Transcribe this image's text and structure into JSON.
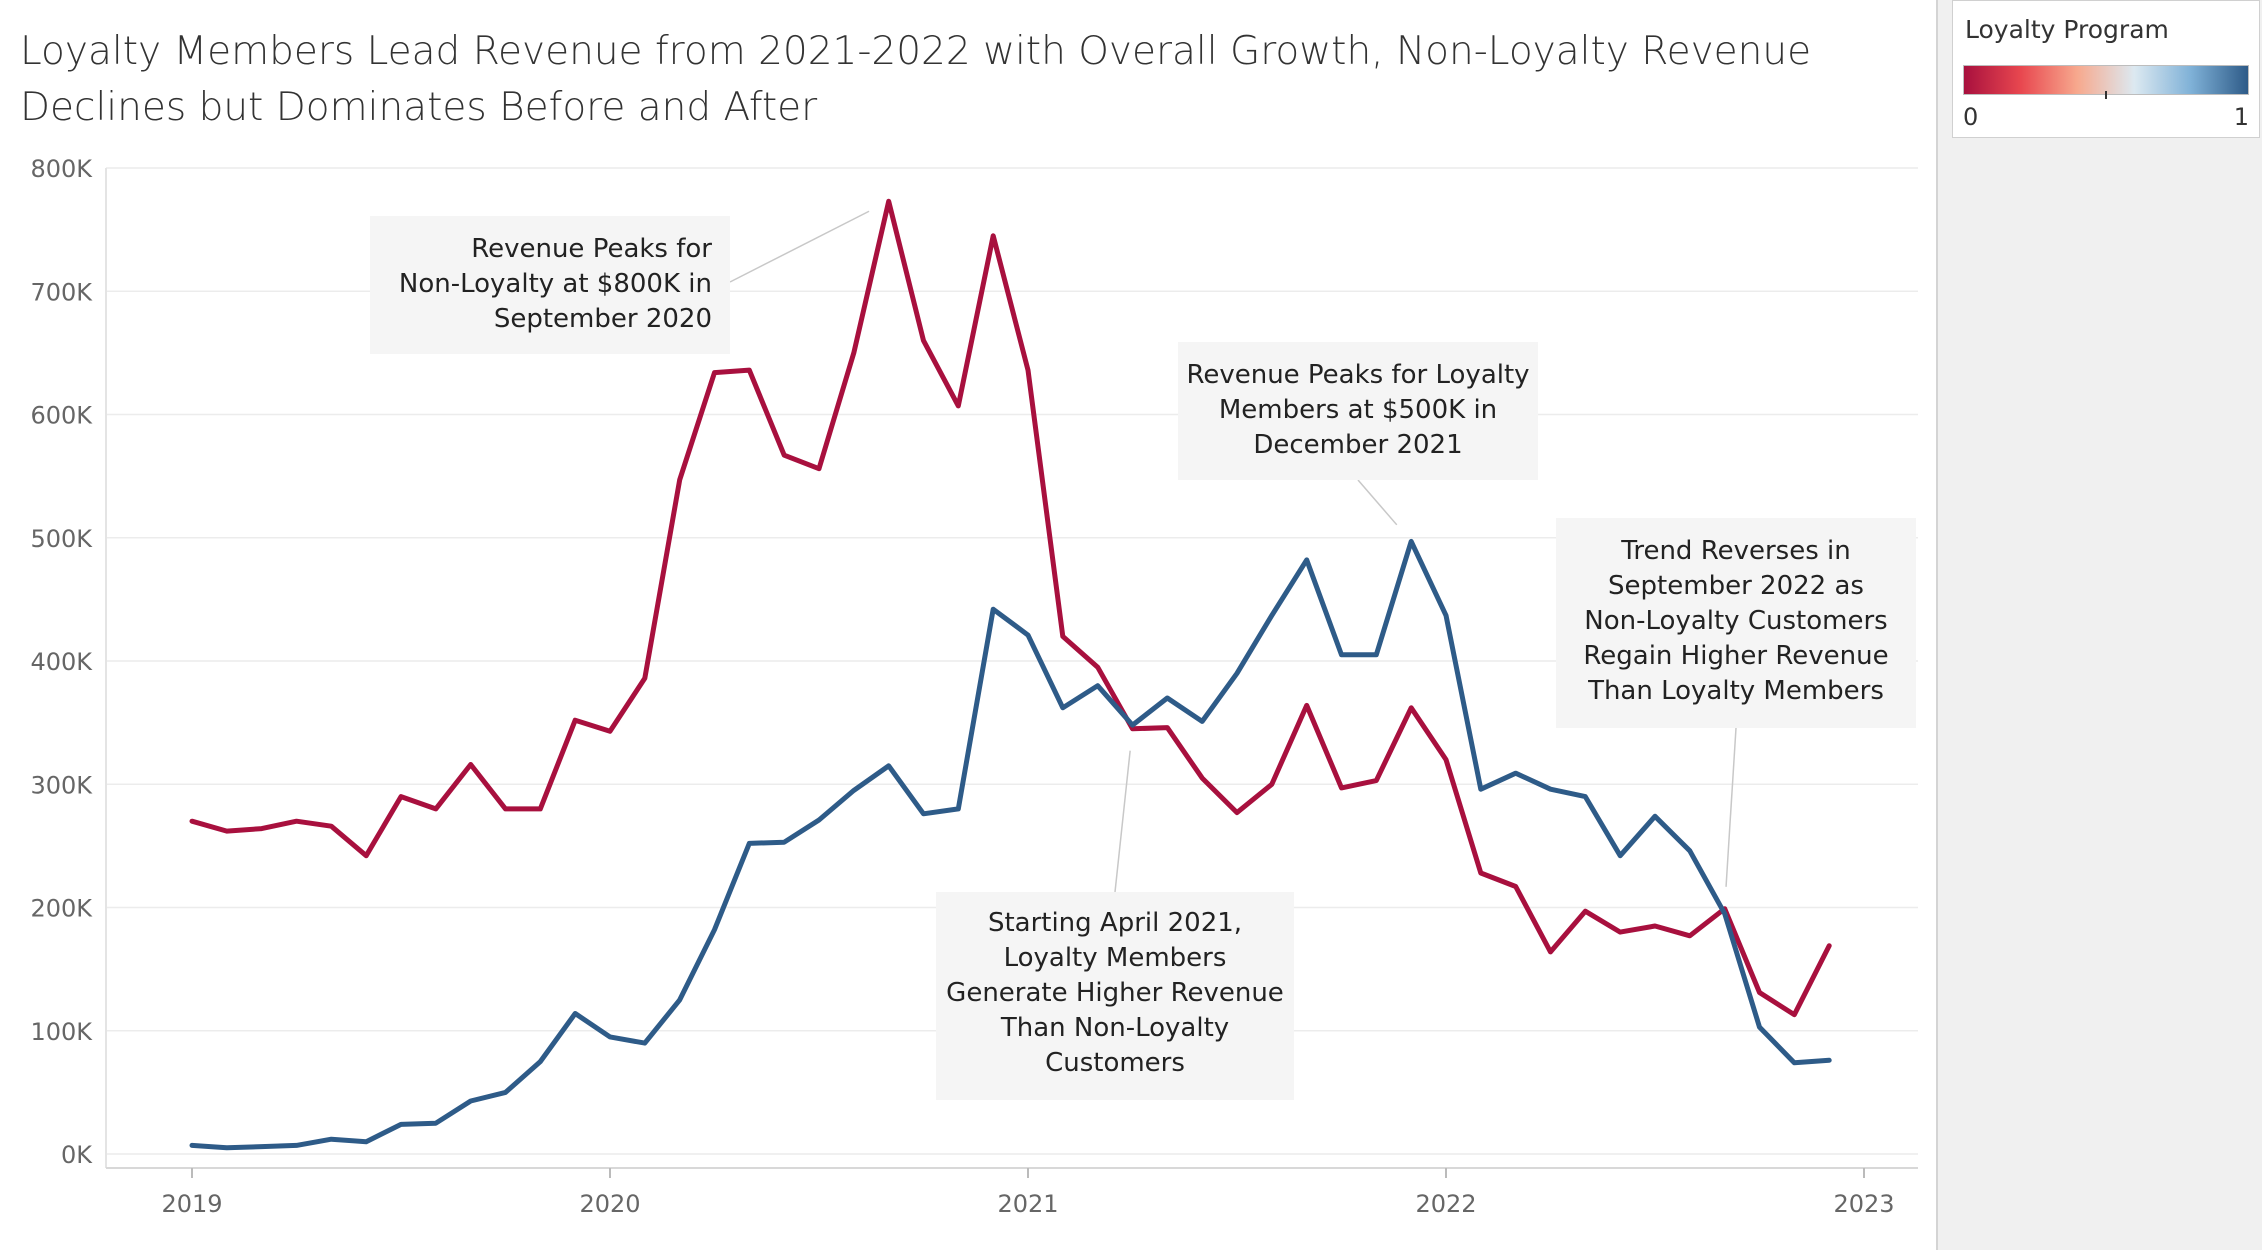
{
  "chart_data": {
    "type": "line",
    "title": "Loyalty Members Lead Revenue from 2021-2022 with Overall Growth, Non-Loyalty Revenue Declines but Dominates Before and After",
    "xlabel": "",
    "ylabel": "",
    "x_ticks": [
      "2019",
      "2020",
      "2021",
      "2022",
      "2023"
    ],
    "y_ticks": [
      "0K",
      "100K",
      "200K",
      "300K",
      "400K",
      "500K",
      "600K",
      "700K",
      "800K"
    ],
    "ylim": [
      0,
      800000
    ],
    "grid": true,
    "x": [
      "2019-01",
      "2019-02",
      "2019-03",
      "2019-04",
      "2019-05",
      "2019-06",
      "2019-07",
      "2019-08",
      "2019-09",
      "2019-10",
      "2019-11",
      "2019-12",
      "2020-01",
      "2020-02",
      "2020-03",
      "2020-04",
      "2020-05",
      "2020-06",
      "2020-07",
      "2020-08",
      "2020-09",
      "2020-10",
      "2020-11",
      "2020-12",
      "2021-01",
      "2021-02",
      "2021-03",
      "2021-04",
      "2021-05",
      "2021-06",
      "2021-07",
      "2021-08",
      "2021-09",
      "2021-10",
      "2021-11",
      "2021-12",
      "2022-01",
      "2022-02",
      "2022-03",
      "2022-04",
      "2022-05",
      "2022-06",
      "2022-07",
      "2022-08",
      "2022-09",
      "2022-10",
      "2022-11",
      "2022-12"
    ],
    "series": [
      {
        "color": "#a8103e",
        "loyalty_value": 0,
        "values": [
          270000,
          262000,
          264000,
          270000,
          266000,
          242000,
          290000,
          280000,
          316000,
          280000,
          280000,
          352000,
          343000,
          386000,
          547000,
          634000,
          636000,
          567000,
          556000,
          650000,
          773000,
          660000,
          607000,
          745000,
          636000,
          420000,
          395000,
          345000,
          346000,
          305000,
          277000,
          300000,
          364000,
          297000,
          303000,
          362000,
          320000,
          228000,
          217000,
          164000,
          197000,
          180000,
          185000,
          177000,
          199000,
          131000,
          113000,
          169000
        ]
      },
      {
        "color": "#2e5b88",
        "loyalty_value": 1,
        "values": [
          7000,
          5000,
          6000,
          7000,
          12000,
          10000,
          24000,
          25000,
          43000,
          50000,
          75000,
          114000,
          95000,
          90000,
          125000,
          182000,
          252000,
          253000,
          271000,
          295000,
          315000,
          276000,
          280000,
          442000,
          421000,
          362000,
          380000,
          348000,
          370000,
          351000,
          390000,
          437000,
          482000,
          405000,
          405000,
          497000,
          437000,
          296000,
          309000,
          296000,
          290000,
          242000,
          274000,
          246000,
          195000,
          103000,
          74000,
          76000
        ]
      }
    ],
    "legend": {
      "title": "Loyalty Program",
      "type": "continuous-color",
      "min_label": "0",
      "max_label": "1",
      "gradient": [
        "#a8103e",
        "#e8474f",
        "#f7a98e",
        "#dce9f1",
        "#7fb1d7",
        "#2e5b88"
      ],
      "placement": "top-right"
    },
    "annotations": [
      {
        "id": "nonloyalty-peak",
        "lines": [
          "Revenue Peaks for",
          "Non-Loyalty at $800K in",
          "September 2020"
        ],
        "points_to": {
          "x": "2020-09",
          "y": 773000
        }
      },
      {
        "id": "loyalty-peak",
        "lines": [
          "Revenue Peaks for Loyalty",
          "Members at $500K in",
          "December 2021"
        ],
        "points_to": {
          "x": "2021-12",
          "y": 497000
        }
      },
      {
        "id": "crossover-april-2021",
        "lines": [
          "Starting April 2021,",
          "Loyalty Members",
          "Generate Higher Revenue",
          "Than Non-Loyalty",
          "Customers"
        ],
        "points_to": {
          "x": "2021-04",
          "y": 345000
        }
      },
      {
        "id": "trend-reversal-sept-2022",
        "lines": [
          "Trend Reverses in",
          "September 2022 as",
          "Non-Loyalty Customers",
          "Regain Higher Revenue",
          "Than Loyalty Members"
        ],
        "points_to": {
          "x": "2022-09",
          "y": 199000
        }
      }
    ]
  }
}
